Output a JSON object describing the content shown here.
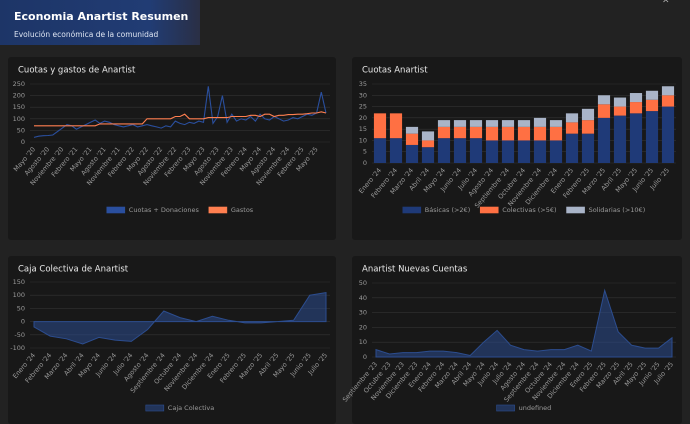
{
  "header": {
    "title": "Economia Anartist Resumen",
    "subtitle": "Evolución económica de la comunidad"
  },
  "chart_data": [
    {
      "type": "line",
      "title": "Cuotas y gastos de Anartist",
      "categories": [
        "Mayo '20",
        null,
        null,
        "Agosto '20",
        null,
        null,
        "Noviembre '20",
        null,
        null,
        "Febrero '21",
        null,
        null,
        "Mayo '21",
        null,
        null,
        "Agosto '21",
        null,
        null,
        "Noviembre '21",
        null,
        null,
        "Febrero '22",
        null,
        null,
        "Mayo '22",
        null,
        null,
        "Agosto '22",
        null,
        null,
        "Noviembre '22",
        null,
        null,
        "Febrero '23",
        null,
        null,
        "Mayo '23",
        null,
        null,
        "Agosto '23",
        null,
        null,
        "Noviembre '23",
        null,
        null,
        "Febrero '24",
        null,
        null,
        "Mayo '24",
        null,
        null,
        "Agosto '24",
        null,
        null,
        "Noviembre '24",
        null,
        null,
        "Febrero '25",
        null,
        null,
        "Mayo '25",
        null,
        null
      ],
      "series": [
        {
          "name": "Cuotas + Donaciones",
          "color": "#2a4f9e",
          "values": [
            20,
            25,
            27,
            28,
            30,
            45,
            60,
            75,
            70,
            55,
            65,
            75,
            85,
            95,
            80,
            90,
            85,
            75,
            70,
            65,
            70,
            75,
            65,
            70,
            75,
            70,
            65,
            60,
            70,
            65,
            90,
            80,
            75,
            85,
            80,
            90,
            85,
            240,
            80,
            110,
            200,
            85,
            120,
            90,
            100,
            95,
            110,
            90,
            120,
            100,
            95,
            110,
            100,
            90,
            95,
            105,
            100,
            110,
            120,
            115,
            125,
            215,
            125
          ]
        },
        {
          "name": "Gastos",
          "color": "#ff7f50",
          "values": [
            70,
            70,
            70,
            70,
            70,
            70,
            70,
            70,
            70,
            70,
            70,
            70,
            70,
            70,
            78,
            78,
            78,
            78,
            78,
            78,
            78,
            78,
            78,
            78,
            100,
            100,
            100,
            100,
            100,
            100,
            110,
            110,
            120,
            100,
            100,
            100,
            100,
            105,
            105,
            105,
            105,
            105,
            110,
            110,
            110,
            110,
            115,
            115,
            110,
            120,
            120,
            110,
            115,
            115,
            118,
            118,
            120,
            120,
            122,
            125,
            125,
            130,
            125
          ]
        }
      ],
      "ylim": [
        0,
        250
      ],
      "yticks": [
        0,
        50,
        100,
        150,
        200,
        250
      ],
      "grid": true
    },
    {
      "type": "bar",
      "title": "Cuotas Anartist",
      "stacked": true,
      "categories": [
        "Enero '24",
        "Febrero '24",
        "Marzo '24",
        "Abril '24",
        "Mayo '24",
        "Junio '24",
        "Julio '24",
        "Agosto '24",
        "Septiembre '24",
        "Octubre '24",
        "Noviembre '24",
        "Diciembre '24",
        "Enero '25",
        "Febrero '25",
        "Marzo '25",
        "Abril '25",
        "Mayo '25",
        "Junio '25",
        "Julio '25"
      ],
      "series": [
        {
          "name": "Básicas (>2€)",
          "color": "#1f3a78",
          "values": [
            11,
            11,
            8,
            7,
            11,
            11,
            11,
            10,
            10,
            10,
            10,
            10,
            13,
            13,
            20,
            21,
            22,
            23,
            25
          ]
        },
        {
          "name": "Colectivas (>5€)",
          "color": "#ff7043",
          "values": [
            11,
            11,
            5,
            3,
            5,
            5,
            5,
            6,
            6,
            6,
            6,
            6,
            5,
            6,
            6,
            4,
            5,
            5,
            5
          ]
        },
        {
          "name": "Solidarias (>10€)",
          "color": "#a9b4c8",
          "values": [
            0,
            0,
            3,
            4,
            3,
            3,
            3,
            3,
            3,
            3,
            4,
            3,
            4,
            5,
            4,
            4,
            4,
            4,
            4
          ]
        }
      ],
      "ylim": [
        0,
        35
      ],
      "yticks": [
        0,
        5,
        10,
        15,
        20,
        25,
        30,
        35
      ],
      "grid": true
    },
    {
      "type": "area",
      "title": "Caja Colectiva de Anartist",
      "categories": [
        "Enero '24",
        "Febrero '24",
        "Marzo '24",
        "Abril '24",
        "Mayo '24",
        "Junio '24",
        "Julio '24",
        "Agosto '24",
        "Septiembre '24",
        "Octubre '24",
        "Noviembre '24",
        "Diciembre '24",
        "Enero '25",
        "Febrero '25",
        "Marzo '25",
        "Abril '25",
        "Mayo '25",
        "Junio '25",
        "Julio '25"
      ],
      "series": [
        {
          "name": "Caja Colectiva",
          "color": "#2c4d8f",
          "values": [
            -20,
            -55,
            -65,
            -85,
            -60,
            -70,
            -75,
            -30,
            40,
            15,
            0,
            20,
            5,
            -5,
            -5,
            0,
            5,
            100,
            110
          ]
        }
      ],
      "ylim": [
        -100,
        150
      ],
      "yticks": [
        -100,
        -50,
        0,
        50,
        100,
        150
      ],
      "grid": true
    },
    {
      "type": "area",
      "title": "Anartist Nuevas Cuentas",
      "categories": [
        "Septiembre '23",
        "Octubre '23",
        "Noviembre '23",
        "Diciembre '23",
        "Enero '24",
        "Febrero '24",
        "Marzo '24",
        "Abril '24",
        "Mayo '24",
        "Junio '24",
        "Julio '24",
        "Agosto '24",
        "Septiembre '24",
        "Octubre '24",
        "Noviembre '24",
        "Diciembre '24",
        "Enero '25",
        "Febrero '25",
        "Marzo '25",
        "Abril '25",
        "Mayo '25",
        "Junio '25",
        "Julio '25"
      ],
      "series": [
        {
          "name": "undefined",
          "color": "#2c4d8f",
          "values": [
            5,
            2,
            3,
            3,
            4,
            4,
            3,
            1,
            10,
            18,
            8,
            5,
            4,
            5,
            5,
            8,
            4,
            45,
            17,
            8,
            6,
            6,
            13
          ]
        }
      ],
      "ylim": [
        0,
        50
      ],
      "yticks": [
        0,
        10,
        20,
        30,
        40,
        50
      ],
      "grid": true
    }
  ]
}
